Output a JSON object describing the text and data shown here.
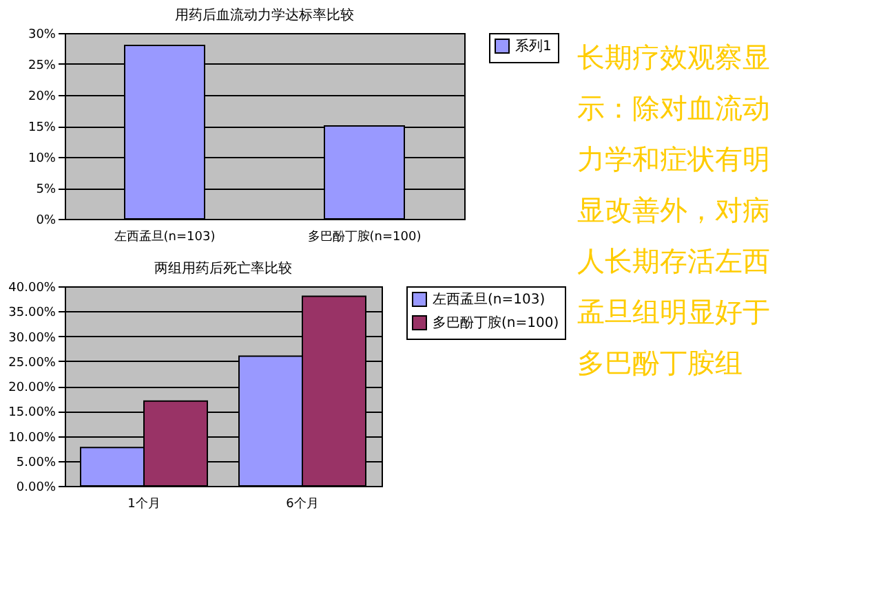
{
  "chart_data": [
    {
      "type": "bar",
      "title": "用药后血流动力学达标率比较",
      "categories": [
        "左西孟旦(n=103)",
        "多巴酚丁胺(n=100)"
      ],
      "series": [
        {
          "name": "系列1",
          "color": "#9999ff",
          "values": [
            28,
            15
          ]
        }
      ],
      "ylim": [
        0,
        30
      ],
      "yticks": [
        {
          "value": 0,
          "label": "0%"
        },
        {
          "value": 5,
          "label": "5%"
        },
        {
          "value": 10,
          "label": "10%"
        },
        {
          "value": 15,
          "label": "15%"
        },
        {
          "value": 20,
          "label": "20%"
        },
        {
          "value": 25,
          "label": "25%"
        },
        {
          "value": 30,
          "label": "30%"
        }
      ],
      "grid": "y",
      "legend": "right"
    },
    {
      "type": "bar",
      "title": "两组用药后死亡率比较",
      "categories": [
        "1个月",
        "6个月"
      ],
      "series": [
        {
          "name": "左西孟旦(n=103)",
          "color": "#9999ff",
          "values": [
            7.7,
            26
          ]
        },
        {
          "name": "多巴酚丁胺(n=100)",
          "color": "#993366",
          "values": [
            17,
            38
          ]
        }
      ],
      "ylim": [
        0,
        40
      ],
      "yticks": [
        {
          "value": 0,
          "label": "0.00%"
        },
        {
          "value": 5,
          "label": "5.00%"
        },
        {
          "value": 10,
          "label": "10.00%"
        },
        {
          "value": 15,
          "label": "15.00%"
        },
        {
          "value": 20,
          "label": "20.00%"
        },
        {
          "value": 25,
          "label": "25.00%"
        },
        {
          "value": 30,
          "label": "30.00%"
        },
        {
          "value": 35,
          "label": "35.00%"
        },
        {
          "value": 40,
          "label": "40.00%"
        }
      ],
      "grid": "y",
      "legend": "right"
    },
    {
      "type": "other",
      "annotations": [
        "长期疗效观察显示：除对血流动力学和症状有明显改善外，对病人长期存活左西孟旦组明显好于多巴酚丁胺组"
      ]
    }
  ]
}
